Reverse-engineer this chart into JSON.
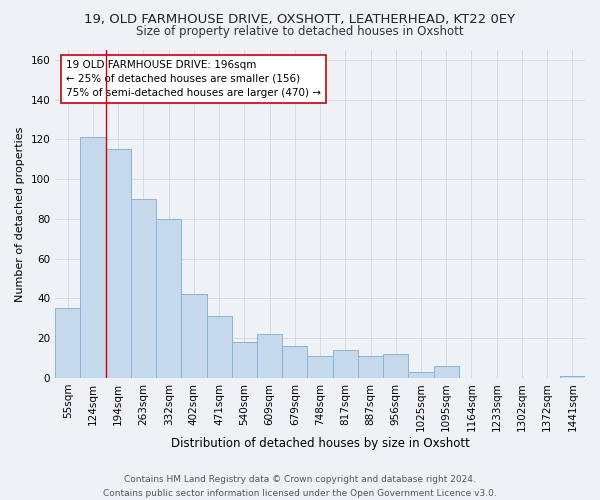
{
  "title1": "19, OLD FARMHOUSE DRIVE, OXSHOTT, LEATHERHEAD, KT22 0EY",
  "title2": "Size of property relative to detached houses in Oxshott",
  "xlabel": "Distribution of detached houses by size in Oxshott",
  "ylabel": "Number of detached properties",
  "categories": [
    "55sqm",
    "124sqm",
    "194sqm",
    "263sqm",
    "332sqm",
    "402sqm",
    "471sqm",
    "540sqm",
    "609sqm",
    "679sqm",
    "748sqm",
    "817sqm",
    "887sqm",
    "956sqm",
    "1025sqm",
    "1095sqm",
    "1164sqm",
    "1233sqm",
    "1302sqm",
    "1372sqm",
    "1441sqm"
  ],
  "values": [
    35,
    121,
    115,
    90,
    80,
    42,
    31,
    18,
    22,
    16,
    11,
    14,
    11,
    12,
    3,
    6,
    0,
    0,
    0,
    0,
    1
  ],
  "bar_color": "#c5d8ec",
  "bar_edge_color": "#89b4d4",
  "vline_color": "#cc0000",
  "annotation_text": "19 OLD FARMHOUSE DRIVE: 196sqm\n← 25% of detached houses are smaller (156)\n75% of semi-detached houses are larger (470) →",
  "annotation_box_color": "#ffffff",
  "annotation_box_edge": "#cc0000",
  "ylim": [
    0,
    165
  ],
  "yticks": [
    0,
    20,
    40,
    60,
    80,
    100,
    120,
    140,
    160
  ],
  "grid_color": "#d0d8e0",
  "background_color": "#eef2f7",
  "footer_text": "Contains HM Land Registry data © Crown copyright and database right 2024.\nContains public sector information licensed under the Open Government Licence v3.0.",
  "title1_fontsize": 9.5,
  "title2_fontsize": 8.5,
  "xlabel_fontsize": 8.5,
  "ylabel_fontsize": 8,
  "tick_fontsize": 7.5,
  "annotation_fontsize": 7.5,
  "footer_fontsize": 6.5
}
